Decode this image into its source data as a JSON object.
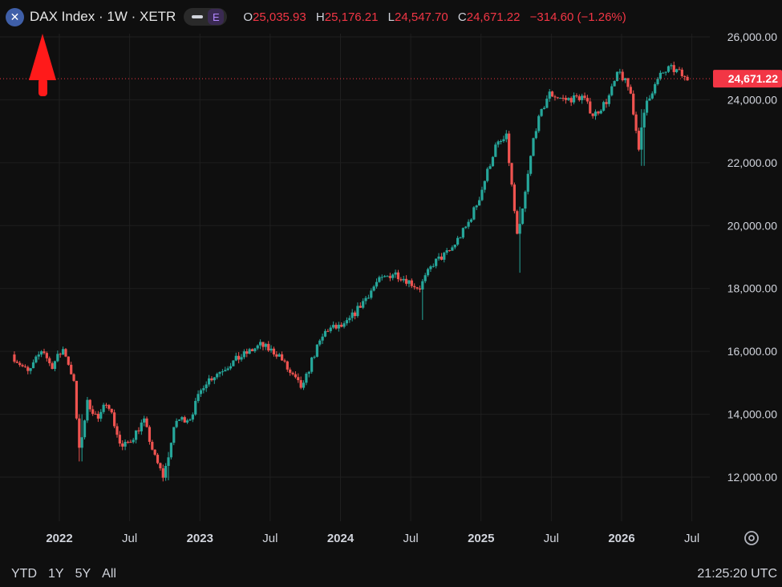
{
  "header": {
    "symbol_icon_glyph": "✕",
    "title": "DAX Index · 1W · XETR",
    "pill_e": "E",
    "ohlc": {
      "o_label": "O",
      "o_value": "25,035.93",
      "h_label": "H",
      "h_value": "25,176.21",
      "l_label": "L",
      "l_value": "24,547.70",
      "c_label": "C",
      "c_value": "24,671.22",
      "change": "−314.60 (−1.26%)"
    }
  },
  "colors": {
    "background": "#0f0f0f",
    "up": "#26a69a",
    "down": "#ef5350",
    "price_label": "#f23645",
    "grid": "#1f1f1f",
    "arrow": "#ff1a1a"
  },
  "chart_data": {
    "type": "candlestick",
    "interval": "1W",
    "last_price_label": "24,671.22",
    "last_price": 24671.22,
    "y_ticks": [
      {
        "value": 26000,
        "label": "26,000.00"
      },
      {
        "value": 24000,
        "label": "24,000.00"
      },
      {
        "value": 22000,
        "label": "22,000.00"
      },
      {
        "value": 20000,
        "label": "20,000.00"
      },
      {
        "value": 18000,
        "label": "18,000.00"
      },
      {
        "value": 16000,
        "label": "16,000.00"
      },
      {
        "value": 14000,
        "label": "14,000.00"
      },
      {
        "value": 12000,
        "label": "12,000.00"
      }
    ],
    "x_ticks": [
      {
        "t": 2022.0,
        "label": "2022",
        "bold": true
      },
      {
        "t": 2022.5,
        "label": "Jul",
        "bold": false
      },
      {
        "t": 2023.0,
        "label": "2023",
        "bold": true
      },
      {
        "t": 2023.5,
        "label": "Jul",
        "bold": false
      },
      {
        "t": 2024.0,
        "label": "2024",
        "bold": true
      },
      {
        "t": 2024.5,
        "label": "Jul",
        "bold": false
      },
      {
        "t": 2025.0,
        "label": "2025",
        "bold": true
      },
      {
        "t": 2025.5,
        "label": "Jul",
        "bold": false
      },
      {
        "t": 2026.0,
        "label": "2026",
        "bold": true
      },
      {
        "t": 2026.5,
        "label": "Jul",
        "bold": false
      }
    ],
    "start": 2021.68,
    "end": 2026.47,
    "y_range": [
      11500,
      26500
    ],
    "path_keypoints": [
      [
        2021.68,
        15900
      ],
      [
        2021.8,
        15300
      ],
      [
        2021.9,
        16100
      ],
      [
        2021.96,
        15500
      ],
      [
        2022.05,
        16100
      ],
      [
        2022.12,
        15100
      ],
      [
        2022.16,
        12800
      ],
      [
        2022.22,
        14400
      ],
      [
        2022.3,
        13800
      ],
      [
        2022.36,
        14500
      ],
      [
        2022.46,
        12900
      ],
      [
        2022.53,
        13200
      ],
      [
        2022.62,
        13800
      ],
      [
        2022.7,
        12600
      ],
      [
        2022.76,
        12000
      ],
      [
        2022.85,
        13800
      ],
      [
        2022.95,
        13900
      ],
      [
        2023.05,
        15000
      ],
      [
        2023.2,
        15500
      ],
      [
        2023.3,
        15800
      ],
      [
        2023.45,
        16200
      ],
      [
        2023.58,
        15900
      ],
      [
        2023.66,
        15300
      ],
      [
        2023.75,
        14800
      ],
      [
        2023.82,
        15800
      ],
      [
        2023.92,
        16700
      ],
      [
        2024.05,
        16800
      ],
      [
        2024.15,
        17400
      ],
      [
        2024.28,
        18200
      ],
      [
        2024.4,
        18500
      ],
      [
        2024.48,
        18300
      ],
      [
        2024.58,
        18000
      ],
      [
        2024.68,
        18800
      ],
      [
        2024.8,
        19200
      ],
      [
        2024.92,
        20000
      ],
      [
        2025.0,
        20800
      ],
      [
        2025.12,
        22500
      ],
      [
        2025.2,
        22800
      ],
      [
        2025.28,
        19500
      ],
      [
        2025.34,
        21200
      ],
      [
        2025.4,
        23000
      ],
      [
        2025.5,
        24200
      ],
      [
        2025.62,
        24000
      ],
      [
        2025.74,
        24100
      ],
      [
        2025.82,
        23500
      ],
      [
        2025.92,
        24000
      ],
      [
        2026.0,
        24900
      ],
      [
        2026.08,
        24300
      ],
      [
        2026.14,
        22500
      ],
      [
        2026.2,
        24000
      ],
      [
        2026.3,
        24800
      ],
      [
        2026.36,
        25000
      ],
      [
        2026.42,
        24900
      ],
      [
        2026.47,
        24671
      ]
    ],
    "spikes": [
      {
        "t": 2025.28,
        "low": 18500,
        "high": 20600
      },
      {
        "t": 2026.15,
        "low": 21900,
        "high": 23700
      },
      {
        "t": 2022.15,
        "low": 12500,
        "high": 14000
      },
      {
        "t": 2022.78,
        "low": 11900,
        "high": 12800
      },
      {
        "t": 2024.58,
        "low": 17000,
        "high": 18300
      }
    ]
  },
  "footer": {
    "ranges": [
      "YTD",
      "1Y",
      "5Y",
      "All"
    ],
    "clock": "21:25:20 UTC"
  }
}
